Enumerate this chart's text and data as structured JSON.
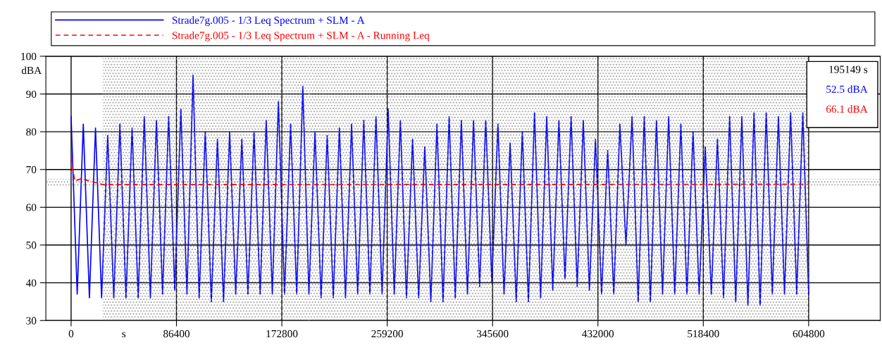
{
  "chart_data": {
    "type": "line",
    "xlabel": "s",
    "ylabel": "dBA",
    "xlim": [
      -20700,
      663500
    ],
    "ylim": [
      30,
      100
    ],
    "xticks": [
      0,
      86400,
      172800,
      259200,
      345600,
      432000,
      518400,
      604800
    ],
    "yticks": [
      30,
      40,
      50,
      60,
      70,
      80,
      90,
      100
    ],
    "grid": true,
    "legend": "top",
    "series": [
      {
        "name": "Strade7g.005 - 1/3 Leq Spectrum + SLM - A",
        "color": "#0000ff",
        "line_style": "solid",
        "x": [
          0,
          5000,
          10000,
          15000,
          20000,
          25000,
          30000,
          35000,
          40000,
          45000,
          50000,
          55000,
          60000,
          65000,
          70000,
          75000,
          80000,
          85000,
          90000,
          95000,
          100000,
          105000,
          110000,
          115000,
          120000,
          125000,
          130000,
          135000,
          140000,
          145000,
          150000,
          155000,
          160000,
          165000,
          170000,
          175000,
          180000,
          185000,
          190000,
          195000,
          200000,
          205000,
          210000,
          215000,
          220000,
          225000,
          230000,
          235000,
          240000,
          245000,
          250000,
          255000,
          260000,
          265000,
          270000,
          275000,
          280000,
          285000,
          290000,
          295000,
          300000,
          305000,
          310000,
          315000,
          320000,
          325000,
          330000,
          335000,
          340000,
          345000,
          350000,
          355000,
          360000,
          365000,
          370000,
          375000,
          380000,
          385000,
          390000,
          395000,
          400000,
          405000,
          410000,
          415000,
          420000,
          425000,
          430000,
          435000,
          440000,
          445000,
          450000,
          455000,
          460000,
          465000,
          470000,
          475000,
          480000,
          485000,
          490000,
          495000,
          500000,
          505000,
          510000,
          515000,
          520000,
          525000,
          530000,
          535000,
          540000,
          545000,
          550000,
          555000,
          560000,
          565000,
          570000,
          575000,
          580000,
          585000,
          590000,
          595000,
          600000,
          604800
        ],
        "values": [
          84,
          37,
          82,
          36,
          81,
          36,
          79,
          36,
          82,
          36,
          81,
          36,
          84,
          36,
          83,
          37,
          84,
          38,
          86,
          37,
          95,
          36,
          80,
          35,
          78,
          35,
          80,
          37,
          78,
          37,
          80,
          37,
          83,
          37,
          88,
          37,
          82,
          37,
          92,
          37,
          80,
          36,
          79,
          36,
          81,
          36,
          82,
          37,
          83,
          37,
          84,
          37,
          86,
          37,
          83,
          36,
          78,
          36,
          76,
          35,
          82,
          35,
          84,
          36,
          83,
          37,
          83,
          39,
          83,
          40,
          82,
          37,
          77,
          35,
          80,
          35,
          85,
          36,
          84,
          38,
          83,
          41,
          84,
          39,
          83,
          38,
          78,
          37,
          75,
          37,
          82,
          50,
          84,
          35,
          84,
          35,
          83,
          37,
          84,
          37,
          82,
          37,
          80,
          37,
          76,
          37,
          78,
          36,
          84,
          35,
          84,
          34,
          85,
          34,
          85,
          37,
          84,
          37,
          85,
          37,
          85,
          37
        ]
      },
      {
        "name": "Strade7g.005 - 1/3 Leq Spectrum + SLM - A - Running Leq",
        "color": "#ff0000",
        "line_style": "dashed",
        "x": [
          0,
          3000,
          8000,
          15000,
          26000,
          604800
        ],
        "values": [
          73,
          67,
          67.5,
          67,
          66,
          66.1
        ]
      }
    ],
    "ref_lines": [
      {
        "axis": "x",
        "value": 195149,
        "color": "#ffffff",
        "line_style": "dashed"
      }
    ],
    "bands": [
      {
        "axis": "x",
        "from": 25900,
        "to": 604800,
        "color": "#808080"
      },
      {
        "axis": "y",
        "from": 65.5,
        "to": 67.5,
        "color": "#808080"
      }
    ],
    "annotations": [
      "195149 s",
      "52.5 dBA",
      "66.1 dBA"
    ]
  }
}
